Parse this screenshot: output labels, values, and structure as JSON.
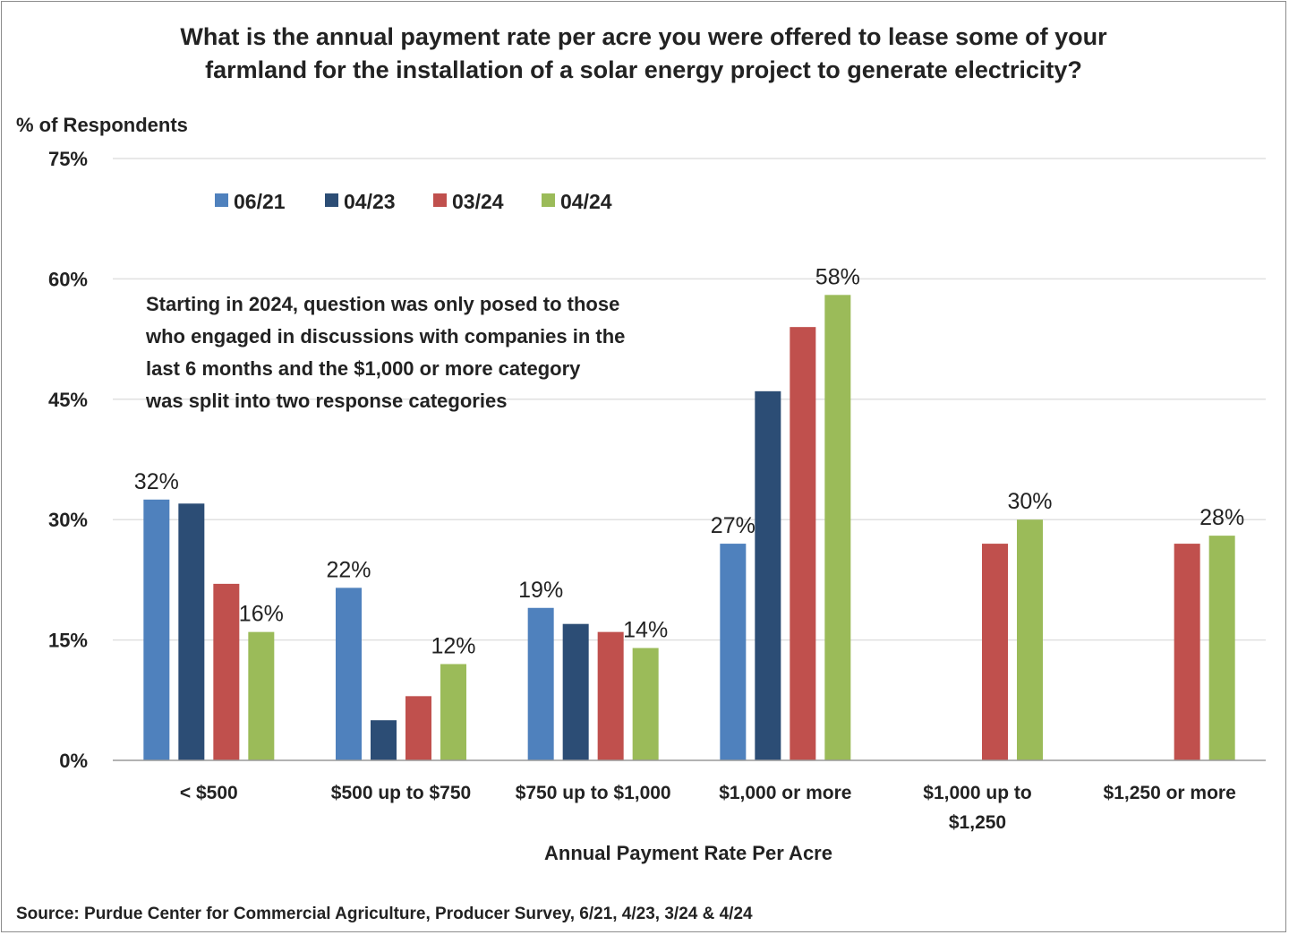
{
  "chart_data": {
    "type": "bar",
    "title_lines": [
      "What is the annual payment rate per acre you were offered to lease some of your",
      "farmland for the installation of a solar energy project to generate electricity?"
    ],
    "ylabel": "% of Respondents",
    "xlabel": "Annual Payment Rate Per Acre",
    "ylim": [
      0,
      75
    ],
    "yticks": [
      0,
      15,
      30,
      45,
      60,
      75
    ],
    "ytick_labels": [
      "0%",
      "15%",
      "30%",
      "45%",
      "60%",
      "75%"
    ],
    "grid": true,
    "legend_position": "top-left",
    "categories": [
      [
        "< $500"
      ],
      [
        "$500 up to $750"
      ],
      [
        "$750 up to $1,000"
      ],
      [
        "$1,000 or more"
      ],
      [
        "$1,000 up to",
        "$1,250"
      ],
      [
        "$1,250 or more"
      ]
    ],
    "series": [
      {
        "name": "06/21",
        "color": "#4f81bd",
        "values": [
          32.5,
          21.5,
          19,
          27,
          null,
          null
        ],
        "labels": [
          "32%",
          "22%",
          "19%",
          "27%",
          "",
          ""
        ]
      },
      {
        "name": "04/23",
        "color": "#2c4d75",
        "values": [
          32,
          5,
          17,
          46,
          null,
          null
        ],
        "labels": [
          "",
          "",
          "",
          "",
          "",
          ""
        ]
      },
      {
        "name": "03/24",
        "color": "#c0504d",
        "values": [
          22,
          8,
          16,
          54,
          27,
          27
        ],
        "labels": [
          "",
          "",
          "",
          "",
          "",
          ""
        ]
      },
      {
        "name": "04/24",
        "color": "#9bbb59",
        "values": [
          16,
          12,
          14,
          58,
          30,
          28
        ],
        "labels": [
          "16%",
          "12%",
          "14%",
          "58%",
          "30%",
          "28%"
        ]
      }
    ],
    "note_lines": [
      "Starting in 2024, question was only posed to those",
      "who engaged in discussions with companies in the",
      "last 6 months and the $1,000 or more category",
      "was split into two response categories"
    ],
    "source": "Source: Purdue Center for Commercial Agriculture, Producer Survey, 6/21, 4/23, 3/24 & 4/24"
  }
}
